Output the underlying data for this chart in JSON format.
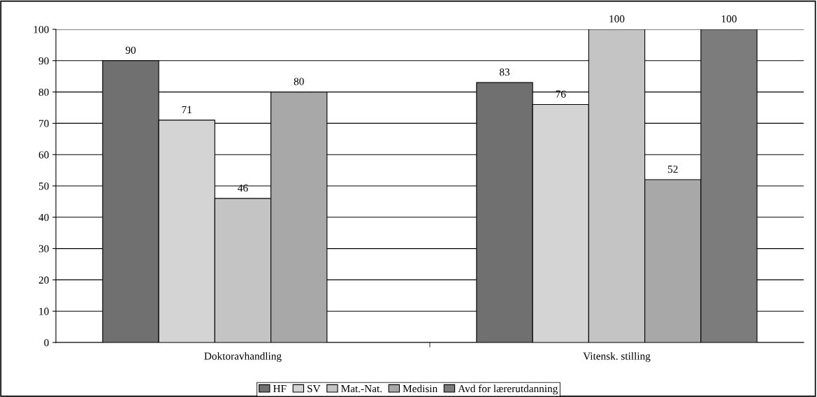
{
  "chart_data": {
    "type": "bar",
    "categories": [
      "Doktoravhandling",
      "Vitensk. stilling"
    ],
    "series": [
      {
        "name": "HF",
        "color": "#707070",
        "values": [
          90,
          83
        ]
      },
      {
        "name": "SV",
        "color": "#d4d4d4",
        "values": [
          71,
          76
        ]
      },
      {
        "name": "Mat.-Nat.",
        "color": "#c4c4c4",
        "values": [
          46,
          100
        ]
      },
      {
        "name": "Medisin",
        "color": "#a8a8a8",
        "values": [
          80,
          52
        ]
      },
      {
        "name": "Avd for lærerutdanning",
        "color": "#7c7c7c",
        "values": [
          null,
          100
        ]
      }
    ],
    "ylim": [
      0,
      100
    ],
    "yticks": [
      0,
      10,
      20,
      30,
      40,
      50,
      60,
      70,
      80,
      90,
      100
    ],
    "grid": "y",
    "legend": "bottom",
    "data_labels": true
  }
}
